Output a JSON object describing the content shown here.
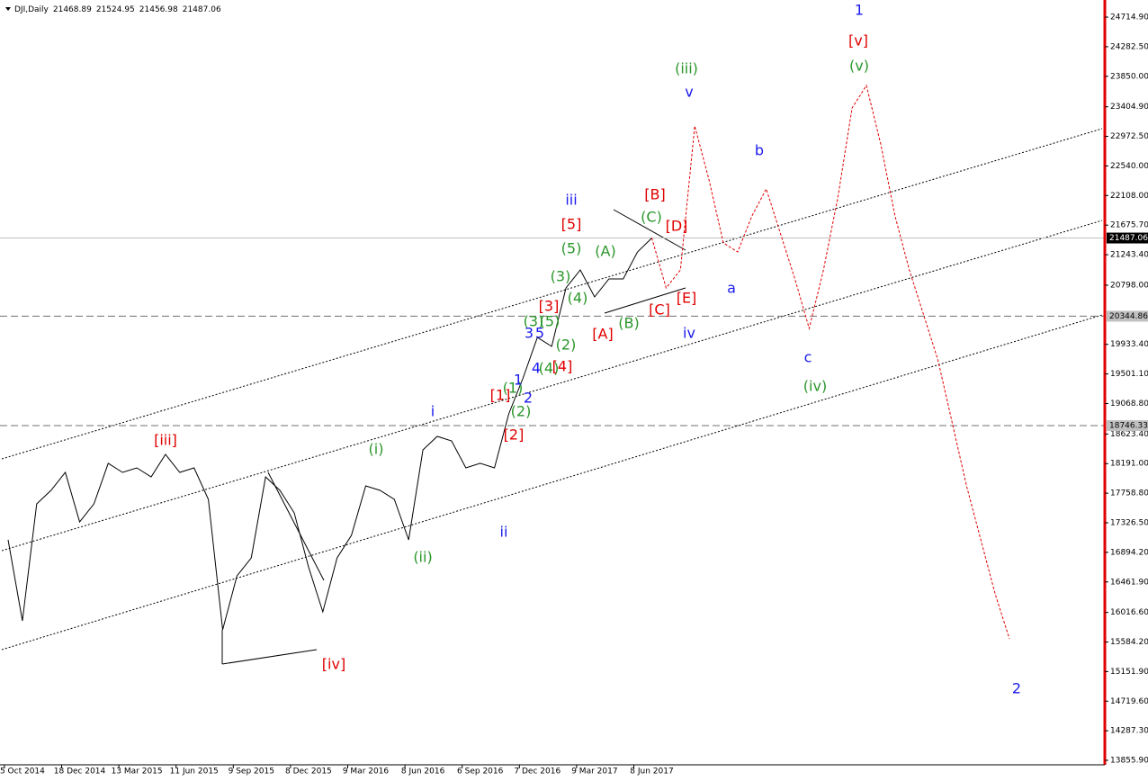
{
  "chart_data": {
    "type": "line",
    "header": {
      "symbol": "DJI,Daily",
      "ohlc": [
        21468.89,
        21524.95,
        21456.98,
        21487.06
      ]
    },
    "categories": [
      null,
      "5 Oct 2014",
      null,
      null,
      null,
      "18 Dec 2014",
      null,
      null,
      null,
      "13 Mar 2015",
      null,
      null,
      null,
      "11 Jun 2015",
      null,
      null,
      null,
      "9 Sep 2015",
      null,
      null,
      null,
      "8 Dec 2015",
      null,
      null,
      null,
      "9 Mar 2016",
      null,
      null,
      null,
      "8 Jun 2016",
      null,
      null,
      null,
      "6 Sep 2016",
      null,
      null,
      null,
      "7 Dec 2016",
      null,
      null,
      null,
      "9 Mar 2017",
      null,
      null,
      null,
      "8 Jun 2017",
      null,
      null,
      null,
      null,
      null,
      null,
      null,
      null,
      null,
      null,
      null,
      null,
      null,
      null,
      null,
      null,
      null,
      null,
      null,
      null,
      null,
      null,
      null,
      null,
      null
    ],
    "series": [
      {
        "color": "#000000",
        "style": "solid",
        "values": [
          17077,
          15894,
          17603,
          17800,
          18063,
          17340,
          17603,
          18195,
          18063,
          18129,
          17997,
          18326,
          18063,
          18129,
          17669,
          15763,
          16551,
          16814,
          17997,
          17800,
          17472,
          16683,
          16025,
          16814,
          17143,
          17866,
          17800,
          17669,
          17077,
          18392,
          18589,
          18523,
          18129,
          18195,
          18129,
          18918,
          19443,
          20035,
          19904,
          20758,
          21021,
          20627,
          20890,
          20890,
          21284,
          21487,
          null,
          null,
          null,
          null,
          null,
          null,
          null,
          null,
          null,
          null,
          null,
          null,
          null,
          null,
          null,
          null,
          null,
          null,
          null,
          null,
          null,
          null,
          null,
          null,
          null
        ]
      },
      {
        "color": "#e00000",
        "style": "dotted",
        "values": [
          null,
          null,
          null,
          null,
          null,
          null,
          null,
          null,
          null,
          null,
          null,
          null,
          null,
          null,
          null,
          null,
          null,
          null,
          null,
          null,
          null,
          null,
          null,
          null,
          null,
          null,
          null,
          null,
          null,
          null,
          null,
          null,
          null,
          null,
          null,
          null,
          null,
          null,
          null,
          null,
          null,
          null,
          null,
          null,
          null,
          21487,
          20758,
          21021,
          23124,
          22336,
          21415,
          21284,
          21810,
          22204,
          21547,
          20890,
          20166,
          21021,
          22073,
          23387,
          23716,
          22861,
          21810,
          21021,
          20364,
          19706,
          18786,
          17866,
          17077,
          16288,
          15631
        ]
      }
    ],
    "ylim": [
      13790,
      24965
    ],
    "yticks": [
      {
        "value": 24714.9,
        "label": "24714.90"
      },
      {
        "value": 24282.5,
        "label": "24282.50"
      },
      {
        "value": 23850,
        "label": "23850.00"
      },
      {
        "value": 23404.9,
        "label": "23404.90"
      },
      {
        "value": 22972.5,
        "label": "22972.50"
      },
      {
        "value": 22540,
        "label": "22540.00"
      },
      {
        "value": 22108,
        "label": "22108.00"
      },
      {
        "value": 21675.7,
        "label": "21675.70"
      },
      {
        "value": 21243.4,
        "label": "21243.40"
      },
      {
        "value": 20798,
        "label": "20798.00"
      },
      {
        "value": 19933.4,
        "label": "19933.40"
      },
      {
        "value": 19501.1,
        "label": "19501.10"
      },
      {
        "value": 19068.8,
        "label": "19068.80"
      },
      {
        "value": 18623.4,
        "label": "18623.40"
      },
      {
        "value": 18191,
        "label": "18191.00"
      },
      {
        "value": 17758.8,
        "label": "17758.80"
      },
      {
        "value": 17326.5,
        "label": "17326.50"
      },
      {
        "value": 16894.2,
        "label": "16894.20"
      },
      {
        "value": 16461.9,
        "label": "16461.90"
      },
      {
        "value": 16016.6,
        "label": "16016.60"
      },
      {
        "value": 15584.2,
        "label": "15584.20"
      },
      {
        "value": 15151.9,
        "label": "15151.90"
      },
      {
        "value": 14719.6,
        "label": "14719.60"
      },
      {
        "value": 14287.3,
        "label": "14287.30"
      },
      {
        "value": 13855.9,
        "label": "13855.90"
      }
    ],
    "hlines": [
      {
        "value": 21487.06,
        "style": "solid",
        "color": "#c0c0c0",
        "box": "#000000"
      },
      {
        "value": 20344.86,
        "style": "dashed",
        "color": "#707070",
        "box": "#c0c0c0"
      },
      {
        "value": 18746.33,
        "style": "dashed",
        "color": "#707070",
        "box": "#c0c0c0"
      }
    ],
    "annotations": [
      {
        "text": "1",
        "color": "#1a1aee"
      },
      {
        "text": "[v]",
        "color": "#e00000"
      },
      {
        "text": "(v)",
        "color": "#2a962a"
      },
      {
        "text": "(iii)",
        "color": "#2a962a"
      },
      {
        "text": "v",
        "color": "#1a1aee"
      },
      {
        "text": "b",
        "color": "#1a1aee"
      },
      {
        "text": "iii",
        "color": "#1a1aee"
      },
      {
        "text": "[B]",
        "color": "#e00000"
      },
      {
        "text": "(C)",
        "color": "#2a962a"
      },
      {
        "text": "[D]",
        "color": "#e00000"
      },
      {
        "text": "[5]",
        "color": "#e00000"
      },
      {
        "text": "(5)",
        "color": "#2a962a"
      },
      {
        "text": "(A)",
        "color": "#2a962a"
      },
      {
        "text": "(3)",
        "color": "#2a962a"
      },
      {
        "text": "(4)",
        "color": "#2a962a"
      },
      {
        "text": "[E]",
        "color": "#e00000"
      },
      {
        "text": "a",
        "color": "#1a1aee"
      },
      {
        "text": "[C]",
        "color": "#e00000"
      },
      {
        "text": "[3]",
        "color": "#e00000"
      },
      {
        "text": "(3)",
        "color": "#2a962a"
      },
      {
        "text": "(5)",
        "color": "#2a962a"
      },
      {
        "text": "(B)",
        "color": "#2a962a"
      },
      {
        "text": "[A]",
        "color": "#e00000"
      },
      {
        "text": "iv",
        "color": "#1a1aee"
      },
      {
        "text": "3",
        "color": "#1a1aee"
      },
      {
        "text": "5",
        "color": "#1a1aee"
      },
      {
        "text": "(2)",
        "color": "#2a962a"
      },
      {
        "text": "c",
        "color": "#1a1aee"
      },
      {
        "text": "4",
        "color": "#1a1aee"
      },
      {
        "text": "(4)",
        "color": "#2a962a"
      },
      {
        "text": "[4]",
        "color": "#e00000"
      },
      {
        "text": "(1)",
        "color": "#2a962a"
      },
      {
        "text": "1",
        "color": "#1a1aee"
      },
      {
        "text": "2",
        "color": "#1a1aee"
      },
      {
        "text": "[1]",
        "color": "#e00000"
      },
      {
        "text": "(iv)",
        "color": "#2a962a"
      },
      {
        "text": "(2)",
        "color": "#2a962a"
      },
      {
        "text": "i",
        "color": "#1a1aee"
      },
      {
        "text": "[2]",
        "color": "#e00000"
      },
      {
        "text": "[iii]",
        "color": "#e00000"
      },
      {
        "text": "(i)",
        "color": "#2a962a"
      },
      {
        "text": "ii",
        "color": "#1a1aee"
      },
      {
        "text": "(ii)",
        "color": "#2a962a"
      },
      {
        "text": "[iv]",
        "color": "#e00000"
      },
      {
        "text": "2",
        "color": "#1a1aee"
      }
    ]
  }
}
